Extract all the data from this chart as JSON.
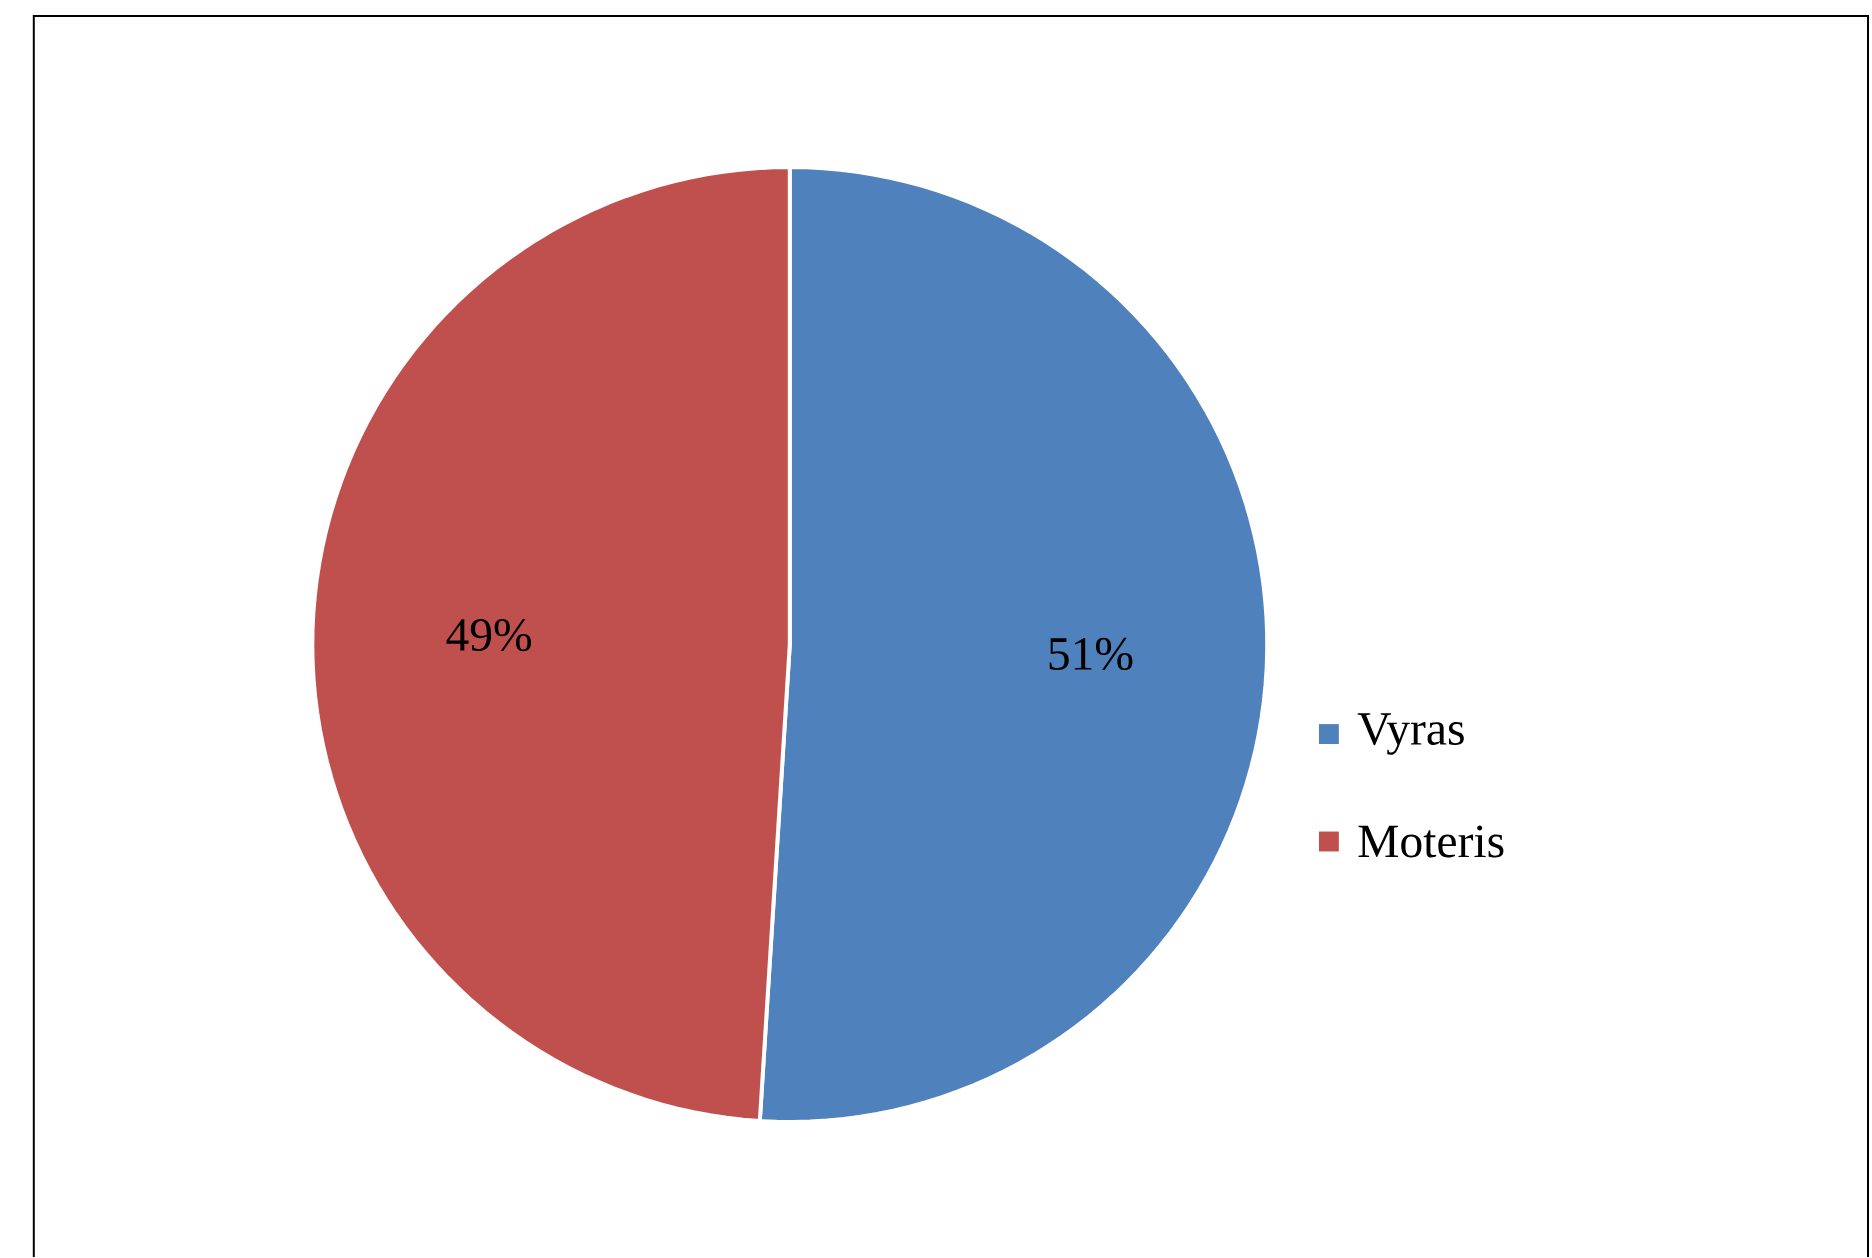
{
  "chart_data": {
    "type": "pie",
    "categories": [
      "Vyras",
      "Moteris"
    ],
    "values": [
      51,
      49
    ],
    "colors": [
      "#4f81bd",
      "#c0504d"
    ],
    "value_labels": [
      "51%",
      "49%"
    ],
    "legend": "right"
  }
}
